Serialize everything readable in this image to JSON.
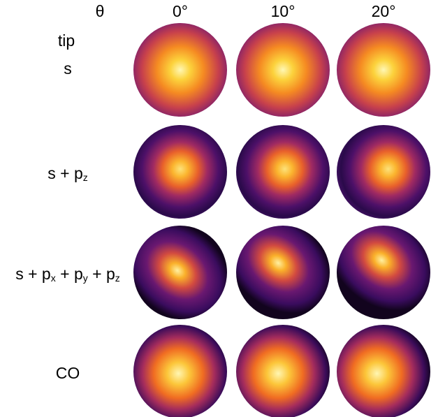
{
  "header": {
    "theta": "θ",
    "columns": [
      "0°",
      "10°",
      "20°"
    ],
    "row_header": "tip"
  },
  "rows": [
    {
      "label": [
        "s"
      ]
    },
    {
      "label": [
        "s + p",
        "z"
      ]
    },
    {
      "label": [
        "s + p",
        "x",
        " + p",
        "y",
        " + p",
        "z"
      ]
    },
    {
      "label": [
        "CO"
      ]
    }
  ]
}
